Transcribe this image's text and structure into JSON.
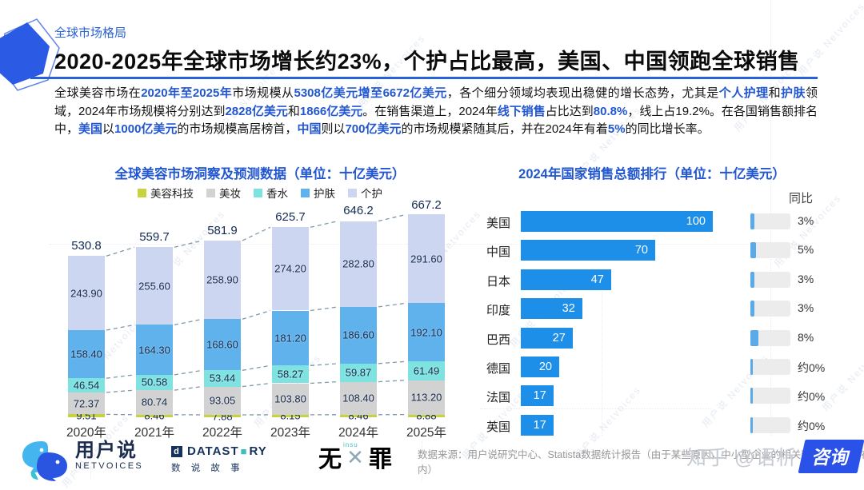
{
  "header": {
    "tag": "全球市场格局",
    "title": "2020-2025年全球市场增长约23%，个护占比最高，美国、中国领跑全球销售"
  },
  "intro_runs": [
    {
      "text": "全球美容市场在",
      "hl": false
    },
    {
      "text": "2020年至2025年",
      "hl": true
    },
    {
      "text": "市场规模从",
      "hl": false
    },
    {
      "text": "5308亿美元增至6672亿美元",
      "hl": true
    },
    {
      "text": "，各个细分领域均表现出稳健的增长态势，尤其是",
      "hl": false
    },
    {
      "text": "个人护理",
      "hl": true
    },
    {
      "text": "和",
      "hl": false
    },
    {
      "text": "护肤",
      "hl": true
    },
    {
      "text": "领域，2024年市场规模将分别达到",
      "hl": false
    },
    {
      "text": "2828亿美元",
      "hl": true
    },
    {
      "text": "和",
      "hl": false
    },
    {
      "text": "1866亿美元",
      "hl": true
    },
    {
      "text": "。在销售渠道上，2024年",
      "hl": false
    },
    {
      "text": "线下销售",
      "hl": true
    },
    {
      "text": "占比达到",
      "hl": false
    },
    {
      "text": "80.8%",
      "hl": true
    },
    {
      "text": "，线上占19.2%。在各国销售额排名中，",
      "hl": false
    },
    {
      "text": "美国",
      "hl": true
    },
    {
      "text": "以",
      "hl": false
    },
    {
      "text": "1000亿美元",
      "hl": true
    },
    {
      "text": "的市场规模高居榜首，",
      "hl": false
    },
    {
      "text": "中国",
      "hl": true
    },
    {
      "text": "则以",
      "hl": false
    },
    {
      "text": "700亿美元",
      "hl": true
    },
    {
      "text": "的市场规模紧随其后，并在2024年有着",
      "hl": false
    },
    {
      "text": "5%",
      "hl": true
    },
    {
      "text": "的同比增长率。",
      "hl": false
    }
  ],
  "chart_data": [
    {
      "type": "bar",
      "stacked": true,
      "title": "全球美容市场洞察及预测数据（单位：十亿美元）",
      "categories": [
        "2020年",
        "2021年",
        "2022年",
        "2023年",
        "2024年",
        "2025年"
      ],
      "totals": [
        "530.8",
        "559.7",
        "581.9",
        "625.7",
        "646.2",
        "667.2"
      ],
      "series": [
        {
          "name": "美容科技",
          "color": "#c6d23e",
          "values": [
            "9.51",
            "8.46",
            "7.88",
            "8.15",
            "8.46",
            "8.88"
          ]
        },
        {
          "name": "美妆",
          "color": "#d2d2d2",
          "values": [
            "72.37",
            "80.74",
            "93.05",
            "103.80",
            "108.40",
            "113.20"
          ]
        },
        {
          "name": "香水",
          "color": "#7ee3e0",
          "values": [
            "46.54",
            "50.58",
            "53.44",
            "58.27",
            "59.87",
            "61.49"
          ]
        },
        {
          "name": "护肤",
          "color": "#5fb2ec",
          "values": [
            "158.40",
            "164.30",
            "168.60",
            "181.20",
            "186.60",
            "192.10"
          ]
        },
        {
          "name": "个护",
          "color": "#ccd6f1",
          "values": [
            "243.90",
            "255.60",
            "258.90",
            "274.20",
            "282.80",
            "291.60"
          ]
        }
      ],
      "legend_position": "top",
      "grid": false
    },
    {
      "type": "bar",
      "orientation": "horizontal",
      "title": "2024年国家销售总额排行（单位：十亿美元）",
      "yoy_label": "同比",
      "categories": [
        "美国",
        "中国",
        "日本",
        "印度",
        "巴西",
        "德国",
        "法国",
        "英国"
      ],
      "values": [
        100,
        70,
        47,
        32,
        27,
        20,
        17,
        17
      ],
      "yoy": [
        "3%",
        "5%",
        "3%",
        "3%",
        "8%",
        "约0%",
        "约0%",
        "约0%"
      ],
      "bar_color": "#1d8fe8",
      "xlim": [
        0,
        100
      ],
      "grid": false
    }
  ],
  "colors": {
    "accent_blue": "#2257d0",
    "underline_blue": "#2760d8",
    "ranking_bar_blue": "#1d8fe8"
  },
  "watermark": {
    "text": "用户说 Netvoices"
  },
  "footer": {
    "netvoices": {
      "cn": "用户说",
      "en": "NETVOICES"
    },
    "datastory": {
      "icon_letter": "d",
      "part1": "DATAST",
      "square": "■",
      "part2": "RY",
      "sub": "数 说 故 事"
    },
    "wuzui": {
      "left": "无",
      "cross": "✕",
      "small": "insu",
      "right": "罪"
    },
    "source": "数据来源：用户说研究中心、Statista数据统计报告（由于某些原因，中小型企业的相关数据未能统计在内）",
    "zhihu": {
      "prefix": "知乎 @语析",
      "badge": "咨询"
    }
  }
}
